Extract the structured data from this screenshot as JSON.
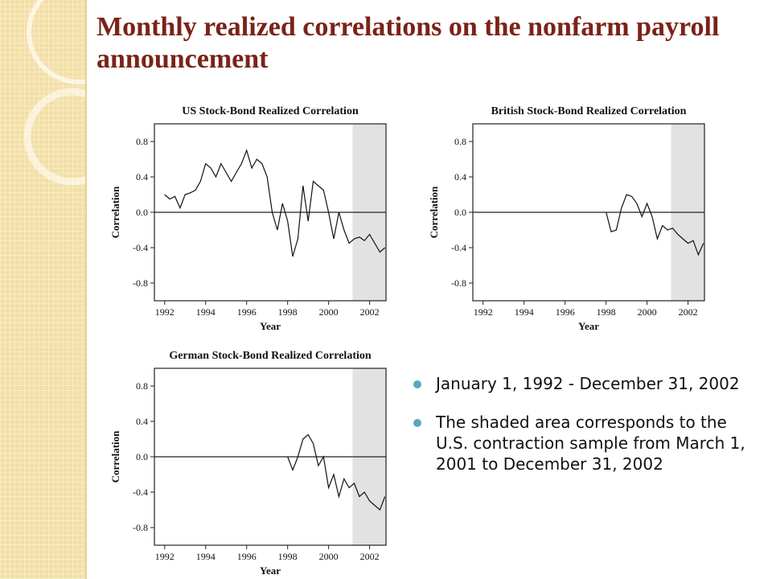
{
  "slide": {
    "title": "Monthly realized correlations on the nonfarm payroll announcement",
    "bullets": [
      "January 1, 1992 - December 31, 2002",
      "The shaded area corresponds to the U.S. contraction sample from March 1, 2001 to December 31, 2002"
    ]
  },
  "chart_data": [
    {
      "type": "line",
      "title": "US Stock-Bond Realized Correlation",
      "xlabel": "Year",
      "ylabel": "Correlation",
      "xlim": [
        1991.5,
        2002.8
      ],
      "ylim": [
        -1.0,
        1.0
      ],
      "xticks": [
        "1992",
        "1994",
        "1996",
        "1998",
        "2000",
        "2002"
      ],
      "yticks": [
        "0.8",
        "0.4",
        "0.0",
        "-0.4",
        "-0.8"
      ],
      "shaded": [
        2001.17,
        2002.8
      ],
      "x": [
        1992.0,
        1992.25,
        1992.5,
        1992.75,
        1993.0,
        1993.25,
        1993.5,
        1993.75,
        1994.0,
        1994.25,
        1994.5,
        1994.75,
        1995.0,
        1995.25,
        1995.5,
        1995.75,
        1996.0,
        1996.25,
        1996.5,
        1996.75,
        1997.0,
        1997.25,
        1997.5,
        1997.75,
        1998.0,
        1998.25,
        1998.5,
        1998.75,
        1999.0,
        1999.25,
        1999.5,
        1999.75,
        2000.0,
        2000.25,
        2000.5,
        2000.75,
        2001.0,
        2001.25,
        2001.5,
        2001.75,
        2002.0,
        2002.25,
        2002.5,
        2002.75
      ],
      "series": [
        {
          "values": [
            0.2,
            0.15,
            0.18,
            0.05,
            0.2,
            0.22,
            0.25,
            0.35,
            0.55,
            0.5,
            0.4,
            0.55,
            0.45,
            0.35,
            0.45,
            0.55,
            0.7,
            0.5,
            0.6,
            0.55,
            0.4,
            0.0,
            -0.2,
            0.1,
            -0.1,
            -0.5,
            -0.3,
            0.3,
            -0.1,
            0.35,
            0.3,
            0.25,
            0.0,
            -0.3,
            0.0,
            -0.2,
            -0.35,
            -0.3,
            -0.28,
            -0.32,
            -0.25,
            -0.35,
            -0.45,
            -0.4
          ]
        }
      ]
    },
    {
      "type": "line",
      "title": "British Stock-Bond Realized Correlation",
      "xlabel": "Year",
      "ylabel": "Correlation",
      "xlim": [
        1991.5,
        2002.8
      ],
      "ylim": [
        -1.0,
        1.0
      ],
      "xticks": [
        "1992",
        "1994",
        "1996",
        "1998",
        "2000",
        "2002"
      ],
      "yticks": [
        "0.8",
        "0.4",
        "0.0",
        "-0.4",
        "-0.8"
      ],
      "shaded": [
        2001.17,
        2002.8
      ],
      "x": [
        1998.0,
        1998.25,
        1998.5,
        1998.75,
        1999.0,
        1999.25,
        1999.5,
        1999.75,
        2000.0,
        2000.25,
        2000.5,
        2000.75,
        2001.0,
        2001.25,
        2001.5,
        2001.75,
        2002.0,
        2002.25,
        2002.5,
        2002.75
      ],
      "series": [
        {
          "values": [
            0.0,
            -0.22,
            -0.2,
            0.05,
            0.2,
            0.18,
            0.1,
            -0.05,
            0.1,
            -0.05,
            -0.3,
            -0.15,
            -0.2,
            -0.18,
            -0.25,
            -0.3,
            -0.35,
            -0.32,
            -0.48,
            -0.35
          ]
        }
      ]
    },
    {
      "type": "line",
      "title": "German Stock-Bond Realized Correlation",
      "xlabel": "Year",
      "ylabel": "Correlation",
      "xlim": [
        1991.5,
        2002.8
      ],
      "ylim": [
        -1.0,
        1.0
      ],
      "xticks": [
        "1992",
        "1994",
        "1996",
        "1998",
        "2000",
        "2002"
      ],
      "yticks": [
        "0.8",
        "0.4",
        "0.0",
        "-0.4",
        "-0.8"
      ],
      "shaded": [
        2001.17,
        2002.8
      ],
      "x": [
        1998.0,
        1998.25,
        1998.5,
        1998.75,
        1999.0,
        1999.25,
        1999.5,
        1999.75,
        2000.0,
        2000.25,
        2000.5,
        2000.75,
        2001.0,
        2001.25,
        2001.5,
        2001.75,
        2002.0,
        2002.25,
        2002.5,
        2002.75
      ],
      "series": [
        {
          "values": [
            0.0,
            -0.15,
            0.0,
            0.2,
            0.25,
            0.15,
            -0.1,
            0.0,
            -0.35,
            -0.2,
            -0.45,
            -0.25,
            -0.35,
            -0.3,
            -0.45,
            -0.4,
            -0.5,
            -0.55,
            -0.6,
            -0.45
          ]
        }
      ]
    }
  ],
  "colors": {
    "title": "#7a2318",
    "bullet": "#5aa7c2",
    "shade": "#e2e2e2",
    "line": "#111111"
  }
}
